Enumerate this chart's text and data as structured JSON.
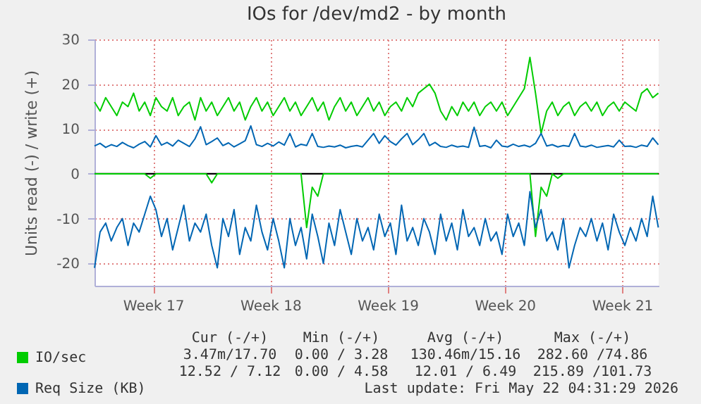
{
  "chart_data": {
    "type": "line",
    "title": "IOs for /dev/md2 - by month",
    "ylabel": "Units read (-) / write (+)",
    "x": [
      "2026-04-18T12:00",
      "2026-04-18T20:00",
      "2026-04-19T04:00",
      "2026-04-19T12:00",
      "2026-04-19T20:00",
      "2026-04-20T04:00",
      "2026-04-20T12:00",
      "2026-04-20T20:00",
      "2026-04-21T04:00",
      "2026-04-21T12:00",
      "2026-04-21T20:00",
      "2026-04-22T04:00",
      "2026-04-22T12:00",
      "2026-04-22T20:00",
      "2026-04-23T04:00",
      "2026-04-23T12:00",
      "2026-04-23T20:00",
      "2026-04-24T04:00",
      "2026-04-24T12:00",
      "2026-04-24T20:00",
      "2026-04-25T04:00",
      "2026-04-25T12:00",
      "2026-04-25T20:00",
      "2026-04-26T04:00",
      "2026-04-26T12:00",
      "2026-04-26T20:00",
      "2026-04-27T04:00",
      "2026-04-27T12:00",
      "2026-04-27T20:00",
      "2026-04-28T04:00",
      "2026-04-28T12:00",
      "2026-04-28T20:00",
      "2026-04-29T04:00",
      "2026-04-29T12:00",
      "2026-04-29T20:00",
      "2026-04-30T04:00",
      "2026-04-30T12:00",
      "2026-04-30T20:00",
      "2026-05-01T04:00",
      "2026-05-01T12:00",
      "2026-05-01T20:00",
      "2026-05-02T04:00",
      "2026-05-02T12:00",
      "2026-05-02T20:00",
      "2026-05-03T04:00",
      "2026-05-03T12:00",
      "2026-05-03T20:00",
      "2026-05-04T04:00",
      "2026-05-04T12:00",
      "2026-05-04T20:00",
      "2026-05-05T04:00",
      "2026-05-05T12:00",
      "2026-05-05T20:00",
      "2026-05-06T04:00",
      "2026-05-06T12:00",
      "2026-05-06T20:00",
      "2026-05-07T04:00",
      "2026-05-07T12:00",
      "2026-05-07T20:00",
      "2026-05-08T04:00",
      "2026-05-08T12:00",
      "2026-05-08T20:00",
      "2026-05-09T04:00",
      "2026-05-09T12:00",
      "2026-05-09T20:00",
      "2026-05-10T04:00",
      "2026-05-10T12:00",
      "2026-05-10T20:00",
      "2026-05-11T04:00",
      "2026-05-11T12:00",
      "2026-05-11T20:00",
      "2026-05-12T04:00",
      "2026-05-12T12:00",
      "2026-05-12T20:00",
      "2026-05-13T04:00",
      "2026-05-13T12:00",
      "2026-05-13T20:00",
      "2026-05-14T04:00",
      "2026-05-14T12:00",
      "2026-05-14T20:00",
      "2026-05-15T04:00",
      "2026-05-15T12:00",
      "2026-05-15T20:00",
      "2026-05-16T04:00",
      "2026-05-16T12:00",
      "2026-05-16T20:00",
      "2026-05-17T04:00",
      "2026-05-17T12:00",
      "2026-05-17T20:00",
      "2026-05-18T04:00",
      "2026-05-18T12:00",
      "2026-05-18T20:00",
      "2026-05-19T04:00",
      "2026-05-19T12:00",
      "2026-05-19T20:00",
      "2026-05-20T04:00",
      "2026-05-20T12:00",
      "2026-05-20T20:00",
      "2026-05-21T04:00",
      "2026-05-21T12:00",
      "2026-05-21T20:00",
      "2026-05-22T04:00"
    ],
    "series": [
      {
        "name": "IO/sec",
        "color": "#00cc00",
        "values": [
          16,
          14,
          17,
          15,
          13,
          16,
          15,
          18,
          14,
          16,
          13,
          17,
          15,
          14,
          17,
          13,
          15,
          16,
          12,
          17,
          14,
          16,
          13,
          15,
          17,
          14,
          16,
          12,
          15,
          17,
          14,
          16,
          13,
          15,
          17,
          14,
          16,
          13,
          15,
          17,
          14,
          16,
          12,
          15,
          17,
          14,
          16,
          13,
          15,
          17,
          14,
          16,
          13,
          15,
          16,
          14,
          17,
          15,
          18,
          19,
          20,
          18,
          14,
          12,
          15,
          13,
          16,
          14,
          16,
          13,
          15,
          16,
          14,
          16,
          13,
          15,
          17,
          19,
          26,
          18,
          9,
          14,
          16,
          13,
          15,
          16,
          13,
          15,
          16,
          14,
          16,
          13,
          15,
          16,
          14,
          16,
          15,
          14,
          18,
          19,
          17,
          18
        ]
      },
      {
        "color": "#00cc00",
        "values": [
          0,
          0,
          0,
          0,
          0,
          0,
          0,
          0,
          0,
          0,
          -1,
          0,
          0,
          0,
          0,
          0,
          0,
          0,
          0,
          0,
          0,
          -2,
          0,
          0,
          0,
          0,
          0,
          0,
          0,
          0,
          0,
          0,
          0,
          0,
          0,
          0,
          0,
          0,
          -12,
          -3,
          -5,
          0,
          0,
          0,
          0,
          0,
          0,
          0,
          0,
          0,
          0,
          0,
          0,
          0,
          0,
          0,
          0,
          0,
          0,
          0,
          0,
          0,
          0,
          0,
          0,
          0,
          0,
          0,
          0,
          0,
          0,
          0,
          0,
          0,
          0,
          0,
          0,
          0,
          0,
          -14,
          -3,
          -5,
          0,
          -1,
          0,
          0,
          0,
          0,
          0,
          0,
          0,
          0,
          0,
          0,
          0,
          0,
          0,
          0,
          0,
          0,
          0,
          0
        ]
      },
      {
        "name": "Req Size (KB)",
        "color": "#0066b3",
        "values": [
          6.2,
          6.8,
          5.9,
          6.5,
          6.1,
          7.0,
          6.3,
          5.8,
          6.6,
          7.2,
          6.0,
          8.5,
          6.4,
          7.0,
          6.2,
          7.5,
          6.8,
          6.1,
          7.8,
          10.5,
          6.5,
          7.2,
          8.0,
          6.3,
          6.9,
          6.0,
          6.7,
          7.4,
          10.7,
          6.5,
          6.1,
          6.8,
          6.2,
          7.1,
          6.4,
          9.0,
          6.0,
          6.6,
          6.3,
          9.0,
          6.1,
          5.9,
          6.2,
          6.0,
          6.4,
          5.8,
          6.1,
          6.3,
          6.0,
          7.5,
          9.0,
          6.8,
          8.5,
          7.2,
          6.4,
          7.8,
          9.0,
          6.5,
          7.6,
          9.0,
          6.3,
          7.0,
          6.1,
          5.9,
          6.4,
          6.0,
          6.2,
          5.9,
          10.4,
          6.1,
          6.3,
          5.8,
          7.5,
          6.2,
          6.0,
          6.6,
          6.1,
          6.4,
          6.0,
          6.8,
          9.0,
          6.2,
          6.5,
          6.0,
          6.3,
          6.1,
          9.0,
          6.2,
          6.0,
          6.4,
          5.9,
          6.1,
          6.3,
          6.0,
          7.5,
          6.1,
          6.2,
          5.9,
          6.4,
          6.1,
          8.0,
          6.5
        ]
      },
      {
        "color": "#0066b3",
        "values": [
          -21,
          -13,
          -11,
          -15,
          -12,
          -10,
          -16,
          -11,
          -13,
          -9,
          -5,
          -8,
          -14,
          -10,
          -17,
          -12,
          -7,
          -15,
          -11,
          -13,
          -9,
          -16,
          -21,
          -10,
          -14,
          -8,
          -18,
          -12,
          -15,
          -7,
          -13,
          -17,
          -10,
          -15,
          -21,
          -10,
          -16,
          -12,
          -19,
          -9,
          -14,
          -20,
          -11,
          -16,
          -8,
          -13,
          -18,
          -10,
          -15,
          -12,
          -17,
          -9,
          -14,
          -11,
          -18,
          -7,
          -15,
          -12,
          -16,
          -10,
          -13,
          -18,
          -9,
          -15,
          -11,
          -17,
          -8,
          -14,
          -12,
          -16,
          -10,
          -15,
          -13,
          -18,
          -9,
          -14,
          -11,
          -16,
          -4,
          -12,
          -8,
          -15,
          -13,
          -17,
          -10,
          -21,
          -16,
          -12,
          -14,
          -10,
          -15,
          -11,
          -17,
          -9,
          -13,
          -16,
          -12,
          -15,
          -10,
          -14,
          -5,
          -12
        ]
      }
    ],
    "xlim": [
      "2026-04-18T12:00",
      "2026-05-22T04:31"
    ],
    "xticks": [
      {
        "value": "2026-04-22",
        "label": "Week 17"
      },
      {
        "value": "2026-04-29",
        "label": "Week 18"
      },
      {
        "value": "2026-05-06",
        "label": "Week 19"
      },
      {
        "value": "2026-05-13",
        "label": "Week 20"
      },
      {
        "value": "2026-05-20",
        "label": "Week 21"
      }
    ],
    "ylim": [
      -25,
      30
    ],
    "yticks": [
      -20,
      -10,
      0,
      10,
      20,
      30
    ],
    "ref_lines": [
      {
        "axis": "y",
        "value": 0,
        "color": "#000000"
      }
    ],
    "grid": true,
    "legend": "bottom left",
    "annotations": [
      "Cur (-/+)",
      "Min (-/+)",
      "Avg (-/+)",
      "Max (-/+)",
      "3.47m/17.70",
      "0.00 / 3.28",
      "130.46m/15.16",
      "282.60 /74.86",
      "12.52 / 7.12",
      "0.00 / 4.58",
      "12.01 / 6.49",
      "215.89 /101.73",
      "Last update: Fri May 22 04:31:29 2026"
    ]
  }
}
